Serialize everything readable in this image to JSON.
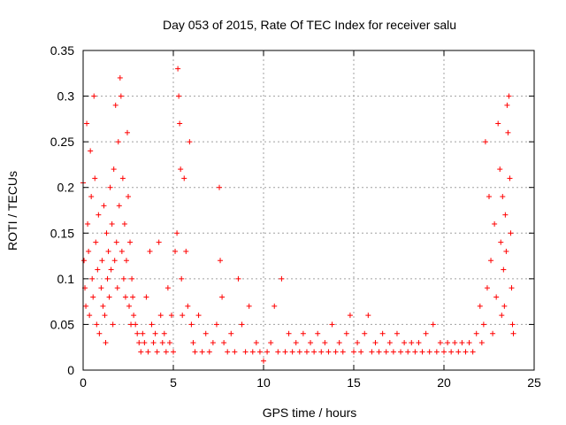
{
  "chart_data": {
    "type": "scatter",
    "title": "Day 053 of 2015, Rate Of TEC Index for receiver salu",
    "xlabel": "GPS time / hours",
    "ylabel": "ROTI / TECUs",
    "xlim": [
      0,
      25
    ],
    "ylim": [
      0,
      0.35
    ],
    "x_ticks": [
      0,
      5,
      10,
      15,
      20,
      25
    ],
    "y_ticks": [
      0,
      0.05,
      0.1,
      0.15,
      0.2,
      0.25,
      0.3,
      0.35
    ],
    "x_tick_labels": [
      "0",
      "5",
      "10",
      "15",
      "20",
      "25"
    ],
    "y_tick_labels": [
      "0",
      "0.05",
      "0.1",
      "0.15",
      "0.2",
      "0.25",
      "0.3",
      "0.35"
    ],
    "grid": true,
    "marker": "+",
    "color": "#ff0000",
    "series": [
      {
        "name": "ROTI",
        "points": [
          [
            0.0,
            0.205
          ],
          [
            0.05,
            0.12
          ],
          [
            0.1,
            0.09
          ],
          [
            0.15,
            0.07
          ],
          [
            0.2,
            0.27
          ],
          [
            0.25,
            0.16
          ],
          [
            0.3,
            0.13
          ],
          [
            0.35,
            0.06
          ],
          [
            0.4,
            0.24
          ],
          [
            0.45,
            0.19
          ],
          [
            0.5,
            0.1
          ],
          [
            0.55,
            0.08
          ],
          [
            0.6,
            0.3
          ],
          [
            0.65,
            0.21
          ],
          [
            0.7,
            0.14
          ],
          [
            0.75,
            0.05
          ],
          [
            0.8,
            0.11
          ],
          [
            0.85,
            0.17
          ],
          [
            0.9,
            0.04
          ],
          [
            1.0,
            0.09
          ],
          [
            1.05,
            0.12
          ],
          [
            1.1,
            0.07
          ],
          [
            1.15,
            0.18
          ],
          [
            1.2,
            0.06
          ],
          [
            1.25,
            0.03
          ],
          [
            1.3,
            0.15
          ],
          [
            1.35,
            0.1
          ],
          [
            1.4,
            0.13
          ],
          [
            1.45,
            0.08
          ],
          [
            1.5,
            0.2
          ],
          [
            1.55,
            0.11
          ],
          [
            1.6,
            0.16
          ],
          [
            1.65,
            0.05
          ],
          [
            1.7,
            0.22
          ],
          [
            1.75,
            0.12
          ],
          [
            1.8,
            0.29
          ],
          [
            1.85,
            0.14
          ],
          [
            1.9,
            0.09
          ],
          [
            1.95,
            0.25
          ],
          [
            2.0,
            0.18
          ],
          [
            2.05,
            0.32
          ],
          [
            2.1,
            0.3
          ],
          [
            2.15,
            0.13
          ],
          [
            2.2,
            0.21
          ],
          [
            2.25,
            0.1
          ],
          [
            2.3,
            0.16
          ],
          [
            2.35,
            0.08
          ],
          [
            2.4,
            0.12
          ],
          [
            2.45,
            0.26
          ],
          [
            2.5,
            0.19
          ],
          [
            2.55,
            0.07
          ],
          [
            2.6,
            0.14
          ],
          [
            2.65,
            0.05
          ],
          [
            2.7,
            0.1
          ],
          [
            2.75,
            0.08
          ],
          [
            2.8,
            0.06
          ],
          [
            2.9,
            0.05
          ],
          [
            3.0,
            0.04
          ],
          [
            3.1,
            0.03
          ],
          [
            3.2,
            0.02
          ],
          [
            3.3,
            0.04
          ],
          [
            3.4,
            0.03
          ],
          [
            3.5,
            0.08
          ],
          [
            3.6,
            0.02
          ],
          [
            3.7,
            0.13
          ],
          [
            3.8,
            0.05
          ],
          [
            3.9,
            0.03
          ],
          [
            4.0,
            0.04
          ],
          [
            4.1,
            0.02
          ],
          [
            4.2,
            0.14
          ],
          [
            4.3,
            0.06
          ],
          [
            4.4,
            0.03
          ],
          [
            4.5,
            0.04
          ],
          [
            4.6,
            0.02
          ],
          [
            4.7,
            0.09
          ],
          [
            4.8,
            0.03
          ],
          [
            4.9,
            0.06
          ],
          [
            5.0,
            0.02
          ],
          [
            5.1,
            0.13
          ],
          [
            5.2,
            0.15
          ],
          [
            5.25,
            0.33
          ],
          [
            5.3,
            0.3
          ],
          [
            5.35,
            0.27
          ],
          [
            5.4,
            0.22
          ],
          [
            5.45,
            0.1
          ],
          [
            5.5,
            0.06
          ],
          [
            5.6,
            0.21
          ],
          [
            5.7,
            0.13
          ],
          [
            5.8,
            0.07
          ],
          [
            5.9,
            0.25
          ],
          [
            6.0,
            0.05
          ],
          [
            6.1,
            0.03
          ],
          [
            6.2,
            0.02
          ],
          [
            6.4,
            0.06
          ],
          [
            6.6,
            0.02
          ],
          [
            6.8,
            0.04
          ],
          [
            7.0,
            0.02
          ],
          [
            7.2,
            0.03
          ],
          [
            7.4,
            0.05
          ],
          [
            7.55,
            0.2
          ],
          [
            7.6,
            0.12
          ],
          [
            7.7,
            0.08
          ],
          [
            7.8,
            0.03
          ],
          [
            8.0,
            0.02
          ],
          [
            8.2,
            0.04
          ],
          [
            8.4,
            0.02
          ],
          [
            8.6,
            0.1
          ],
          [
            8.8,
            0.05
          ],
          [
            9.0,
            0.02
          ],
          [
            9.2,
            0.07
          ],
          [
            9.4,
            0.02
          ],
          [
            9.6,
            0.03
          ],
          [
            9.8,
            0.02
          ],
          [
            10.0,
            0.01
          ],
          [
            10.2,
            0.02
          ],
          [
            10.4,
            0.03
          ],
          [
            10.6,
            0.07
          ],
          [
            10.8,
            0.02
          ],
          [
            11.0,
            0.1
          ],
          [
            11.2,
            0.02
          ],
          [
            11.4,
            0.04
          ],
          [
            11.6,
            0.02
          ],
          [
            11.8,
            0.03
          ],
          [
            12.0,
            0.02
          ],
          [
            12.2,
            0.04
          ],
          [
            12.4,
            0.02
          ],
          [
            12.6,
            0.03
          ],
          [
            12.8,
            0.02
          ],
          [
            13.0,
            0.04
          ],
          [
            13.2,
            0.02
          ],
          [
            13.4,
            0.03
          ],
          [
            13.6,
            0.02
          ],
          [
            13.8,
            0.05
          ],
          [
            14.0,
            0.02
          ],
          [
            14.2,
            0.03
          ],
          [
            14.4,
            0.02
          ],
          [
            14.6,
            0.04
          ],
          [
            14.8,
            0.06
          ],
          [
            15.0,
            0.02
          ],
          [
            15.2,
            0.03
          ],
          [
            15.4,
            0.02
          ],
          [
            15.6,
            0.04
          ],
          [
            15.8,
            0.06
          ],
          [
            16.0,
            0.02
          ],
          [
            16.2,
            0.03
          ],
          [
            16.4,
            0.02
          ],
          [
            16.6,
            0.04
          ],
          [
            16.8,
            0.02
          ],
          [
            17.0,
            0.03
          ],
          [
            17.2,
            0.02
          ],
          [
            17.4,
            0.04
          ],
          [
            17.6,
            0.02
          ],
          [
            17.8,
            0.03
          ],
          [
            18.0,
            0.02
          ],
          [
            18.2,
            0.03
          ],
          [
            18.4,
            0.02
          ],
          [
            18.6,
            0.03
          ],
          [
            18.8,
            0.02
          ],
          [
            19.0,
            0.04
          ],
          [
            19.2,
            0.02
          ],
          [
            19.4,
            0.05
          ],
          [
            19.6,
            0.02
          ],
          [
            19.8,
            0.03
          ],
          [
            20.0,
            0.02
          ],
          [
            20.2,
            0.03
          ],
          [
            20.4,
            0.02
          ],
          [
            20.6,
            0.03
          ],
          [
            20.8,
            0.02
          ],
          [
            21.0,
            0.03
          ],
          [
            21.2,
            0.02
          ],
          [
            21.4,
            0.03
          ],
          [
            21.6,
            0.02
          ],
          [
            21.8,
            0.04
          ],
          [
            22.0,
            0.07
          ],
          [
            22.1,
            0.03
          ],
          [
            22.2,
            0.05
          ],
          [
            22.3,
            0.25
          ],
          [
            22.4,
            0.09
          ],
          [
            22.5,
            0.19
          ],
          [
            22.6,
            0.12
          ],
          [
            22.7,
            0.04
          ],
          [
            22.8,
            0.16
          ],
          [
            22.9,
            0.08
          ],
          [
            23.0,
            0.27
          ],
          [
            23.1,
            0.22
          ],
          [
            23.15,
            0.14
          ],
          [
            23.2,
            0.06
          ],
          [
            23.25,
            0.19
          ],
          [
            23.3,
            0.11
          ],
          [
            23.35,
            0.07
          ],
          [
            23.4,
            0.17
          ],
          [
            23.45,
            0.13
          ],
          [
            23.5,
            0.29
          ],
          [
            23.55,
            0.26
          ],
          [
            23.6,
            0.3
          ],
          [
            23.65,
            0.21
          ],
          [
            23.7,
            0.15
          ],
          [
            23.75,
            0.09
          ],
          [
            23.8,
            0.05
          ],
          [
            23.85,
            0.04
          ]
        ]
      }
    ]
  }
}
